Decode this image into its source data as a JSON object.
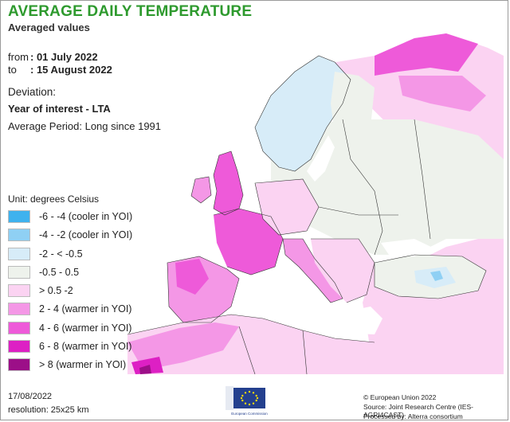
{
  "title": "AVERAGE DAILY TEMPERATURE",
  "subtitle": "Averaged values",
  "period": {
    "from_label": "from",
    "from_value": ": 01 July 2022",
    "to_label": "to",
    "to_value": ": 15 August 2022"
  },
  "deviation_label": "Deviation:",
  "comparison": "Year of interest - LTA",
  "average_period": "Average Period: Long since 1991",
  "legend": {
    "unit": "Unit:  degrees Celsius",
    "items": [
      {
        "label": "-6 - -4 (cooler in YOI)",
        "color": "#3fb2ee"
      },
      {
        "label": "-4 - -2 (cooler in YOI)",
        "color": "#8fd0f4"
      },
      {
        "label": "-2 - < -0.5",
        "color": "#d7ecf8"
      },
      {
        "label": "-0.5 - 0.5",
        "color": "#eef2ec"
      },
      {
        "label": "> 0.5 -2",
        "color": "#fbd3f2"
      },
      {
        "label": "2 - 4 (warmer in YOI)",
        "color": "#f497e6"
      },
      {
        "label": "4 - 6 (warmer in YOI)",
        "color": "#ee5ad9"
      },
      {
        "label": "6 - 8 (warmer in YOI)",
        "color": "#dd20c4"
      },
      {
        "label": "> 8 (warmer in YOI)",
        "color": "#9c0f88"
      }
    ]
  },
  "footer": {
    "date": "17/08/2022",
    "resolution": "resolution:  25x25 km",
    "copyright": "© European Union 2022",
    "source": "Source: Joint Research Centre (IES-AGRI4CAST)",
    "processed": "Processed by: Alterra consortium",
    "logo_text": "European Commission"
  },
  "colors": {
    "title": "#2e9a2e",
    "sea": "#ffffff",
    "border": "#333333"
  }
}
